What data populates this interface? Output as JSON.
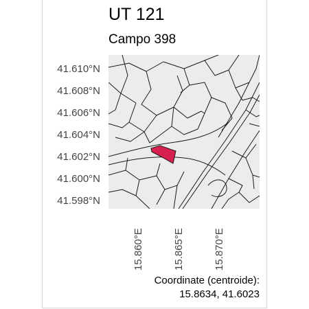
{
  "map": {
    "title": "UT 121",
    "subtitle": "Campo 398",
    "lat_labels": [
      "41.610°N",
      "41.608°N",
      "41.606°N",
      "41.604°N",
      "41.602°N",
      "41.600°N",
      "41.598°N"
    ],
    "lon_labels": [
      "15.860°E",
      "15.865°E",
      "15.870°E"
    ],
    "centroid_label": "Coordinate (centroide):",
    "centroid_value": "15.8634, 41.6023",
    "colors": {
      "background": "#ececec",
      "parcel_lines": "#1a1a1a",
      "highlight": "#d6204f"
    }
  }
}
